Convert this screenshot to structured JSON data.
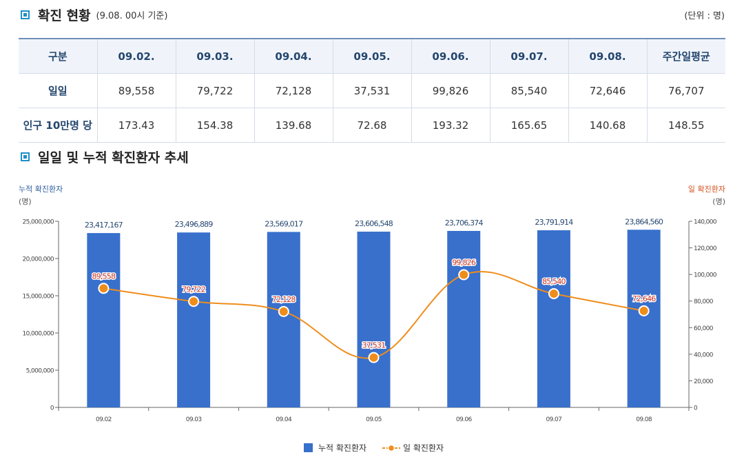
{
  "section1": {
    "title": "확진 현황",
    "subtitle": "(9.08. 00시 기준)",
    "unit": "(단위 : 명)"
  },
  "table": {
    "headers": [
      "구분",
      "09.02.",
      "09.03.",
      "09.04.",
      "09.05.",
      "09.06.",
      "09.07.",
      "09.08.",
      "주간일평균"
    ],
    "rows": [
      {
        "label": "일일",
        "values": [
          "89,558",
          "79,722",
          "72,128",
          "37,531",
          "99,826",
          "85,540",
          "72,646",
          "76,707"
        ]
      },
      {
        "label": "인구 10만명 당",
        "values": [
          "173.43",
          "154.38",
          "139.68",
          "72.68",
          "193.32",
          "165.65",
          "140.68",
          "148.55"
        ]
      }
    ]
  },
  "section2": {
    "title": "일일 및 누적 확진환자 추세"
  },
  "chart_data": {
    "type": "bar",
    "categories": [
      "09.02",
      "09.03",
      "09.04",
      "09.05",
      "09.06",
      "09.07",
      "09.08"
    ],
    "series": [
      {
        "name": "누적 확진환자",
        "type": "bar",
        "axis": "left",
        "color": "#3870cc",
        "values": [
          23417167,
          23496889,
          23569017,
          23606548,
          23706374,
          23791914,
          23864560
        ],
        "labels": [
          "23,417,167",
          "23,496,889",
          "23,569,017",
          "23,606,548",
          "23,706,374",
          "23,791,914",
          "23,864,560"
        ]
      },
      {
        "name": "일 확진환자",
        "type": "line",
        "axis": "right",
        "color": "#ef8d1b",
        "values": [
          89558,
          79722,
          72128,
          37531,
          99826,
          85540,
          72646
        ],
        "labels": [
          "89,558",
          "79,722",
          "72,128",
          "37,531",
          "99,826",
          "85,540",
          "72,646"
        ]
      }
    ],
    "y_left": {
      "label": "누적 확진환자",
      "unit": "(명)",
      "min": 0,
      "max": 25000000,
      "ticks": [
        "0",
        "5,000,000",
        "10,000,000",
        "15,000,000",
        "20,000,000",
        "25,000,000"
      ]
    },
    "y_right": {
      "label": "일 확진환자",
      "unit": "(명)",
      "min": 0,
      "max": 140000,
      "ticks": [
        "0",
        "20,000",
        "40,000",
        "60,000",
        "80,000",
        "100,000",
        "120,000",
        "140,000"
      ]
    },
    "legend": [
      "누적 확진환자",
      "일 확진환자"
    ],
    "legend_position": "bottom"
  }
}
